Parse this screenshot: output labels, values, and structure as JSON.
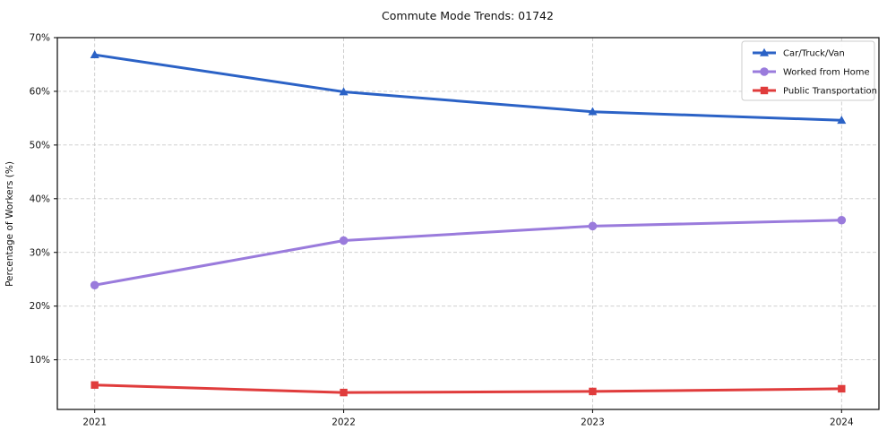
{
  "figure": {
    "background": "#ffffff",
    "frame_color": "#1a1a1a",
    "grid_color": "#c9c9c9"
  },
  "chart_data": {
    "type": "line",
    "title": "Commute Mode Trends: 01742",
    "xlabel": "",
    "ylabel": "Percentage of Workers (%)",
    "x": [
      2021,
      2022,
      2023,
      2024
    ],
    "x_tick_labels": [
      "2021",
      "2022",
      "2023",
      "2024"
    ],
    "y_ticks": [
      10,
      20,
      30,
      40,
      50,
      60,
      70
    ],
    "y_tick_labels": [
      "10%",
      "20%",
      "30%",
      "40%",
      "50%",
      "60%",
      "70%"
    ],
    "xlim": [
      2020.85,
      2024.15
    ],
    "ylim": [
      0.75,
      70
    ],
    "grid": true,
    "grid_style": "dashed",
    "legend_position": "upper right",
    "series": [
      {
        "name": "Car/Truck/Van",
        "color": "#2b62c6",
        "marker": "triangle",
        "values": [
          66.8,
          59.9,
          56.2,
          54.6
        ]
      },
      {
        "name": "Worked from Home",
        "color": "#9a7bdc",
        "marker": "circle",
        "values": [
          23.9,
          32.2,
          34.9,
          36.0
        ]
      },
      {
        "name": "Public Transportation",
        "color": "#e03c3c",
        "marker": "square",
        "values": [
          5.3,
          3.9,
          4.1,
          4.6
        ]
      }
    ]
  }
}
